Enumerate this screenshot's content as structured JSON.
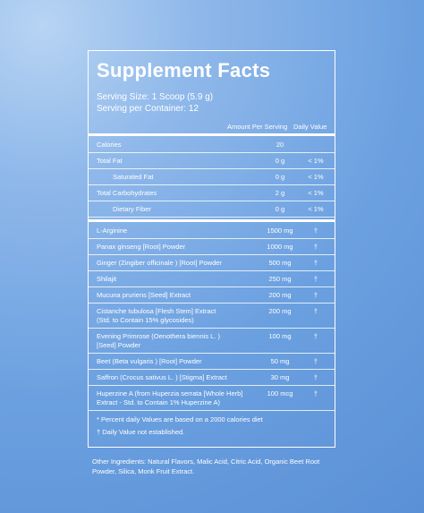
{
  "header": {
    "title": "Supplement Facts",
    "serving_size": "Serving Size: 1 Scoop (5.9 g)",
    "servings_per_container": "Serving per Container: 12"
  },
  "table": {
    "columns": [
      "Amount Per Serving",
      "Daily Value"
    ],
    "nutrients": [
      {
        "name": [
          "Calories"
        ],
        "amount": "20",
        "dv": ""
      },
      {
        "name": [
          "Total Fat"
        ],
        "amount": "0 g",
        "dv": "< 1%"
      },
      {
        "name": [
          "Saturated Fat"
        ],
        "amount": "0 g",
        "dv": "< 1%"
      },
      {
        "name": [
          "Total Carbohydrates"
        ],
        "amount": "2 g",
        "dv": "< 1%"
      },
      {
        "name": [
          "Dietary Fiber"
        ],
        "amount": "0 g",
        "dv": "< 1%"
      }
    ],
    "ingredients": [
      {
        "name": [
          "L-Arginine"
        ],
        "amount": "1500 mg",
        "dv": "†"
      },
      {
        "name": [
          "Panax ginseng [Root] Powder"
        ],
        "amount": "1000 mg",
        "dv": "†"
      },
      {
        "name": [
          "Ginger (Zingiber officinale ) [Root] Powder"
        ],
        "amount": "500 mg",
        "dv": "†"
      },
      {
        "name": [
          "Shilajit"
        ],
        "amount": "250 mg",
        "dv": "†"
      },
      {
        "name": [
          "Mucuna pruriens [Seed] Extract"
        ],
        "amount": "200 mg",
        "dv": "†"
      },
      {
        "name": [
          "Cistanche tubulosa [Flesh Stem] Extract",
          "(Std. to Contain 15% glycosides)"
        ],
        "amount": "200 mg",
        "dv": "†"
      },
      {
        "name": [
          "Evening Primrose (Oenothera biennis L. )",
          "[Seed] Powder"
        ],
        "amount": "100 mg",
        "dv": "†"
      },
      {
        "name": [
          "Beet (Beta vulgaris ) [Root] Powder"
        ],
        "amount": "50 mg",
        "dv": "†"
      },
      {
        "name": [
          "Saffron (Crocus sativus L. ) [Stigma] Extract"
        ],
        "amount": "30 mg",
        "dv": "†"
      },
      {
        "name": [
          "Huperzine A (from Huperzia serrata [Whole Herb]",
          "Extract - Std. to Contain 1% Huperzine A)"
        ],
        "amount": "100 mcg",
        "dv": "†"
      }
    ],
    "footnotes": [
      "* Percent daily Values are based on a 2000 calories diet",
      "† Daily Value not established."
    ]
  },
  "other_ingredients": "Other Ingredients: Natural Flavors, Malic Acid, Citric Acid, Organic Beet Root Powder, Silica, Monk Fruit Extract."
}
